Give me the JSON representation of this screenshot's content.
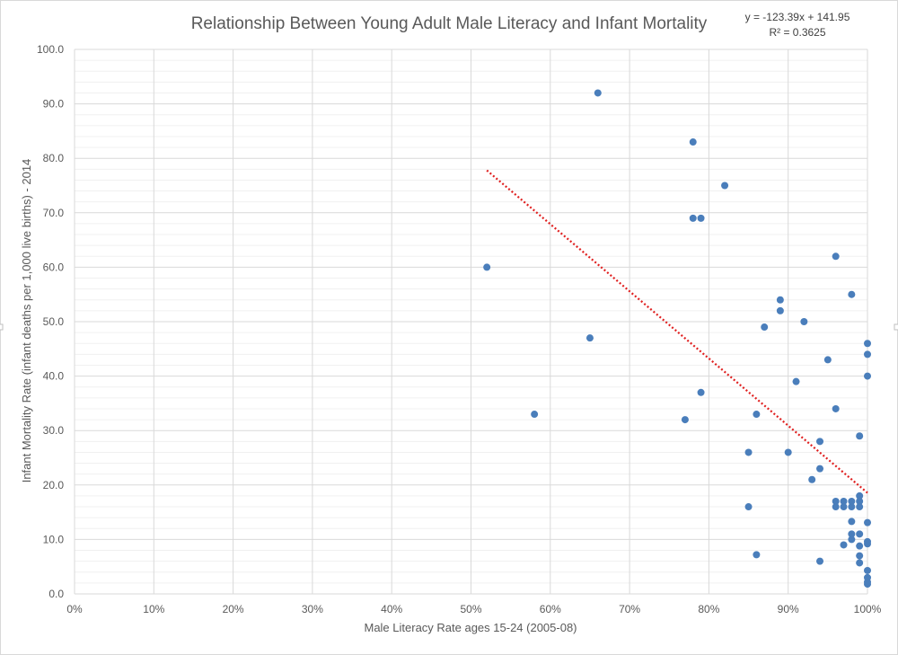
{
  "colors": {
    "marker": "#4a7ebb",
    "trendline": "#e02020",
    "gridline": "#d9d9d9",
    "minor_gridline": "#f0f0f0",
    "text": "#595959"
  },
  "chart_data": {
    "type": "scatter",
    "title": "Relationship Between Young Adult Male Literacy and Infant Mortality",
    "xlabel": "Male Literacy Rate ages 15-24 (2005-08)",
    "ylabel": "Infant Mortality Rate (infant deaths per 1,000 live births) - 2014",
    "xlim": [
      0,
      1
    ],
    "ylim": [
      0,
      100
    ],
    "x_ticks": [
      "0%",
      "10%",
      "20%",
      "30%",
      "40%",
      "50%",
      "60%",
      "70%",
      "80%",
      "90%",
      "100%"
    ],
    "y_ticks": [
      "0.0",
      "10.0",
      "20.0",
      "30.0",
      "40.0",
      "50.0",
      "60.0",
      "70.0",
      "80.0",
      "90.0",
      "100.0"
    ],
    "grid": true,
    "trendline": {
      "type": "linear",
      "slope": -123.39,
      "intercept": 141.95,
      "x_range": [
        0.52,
        1.0
      ],
      "equation": "y = -123.39x + 141.95",
      "r_squared_label": "R² = 0.3625"
    },
    "points": [
      {
        "x": 0.66,
        "y": 92
      },
      {
        "x": 0.78,
        "y": 83
      },
      {
        "x": 0.82,
        "y": 75
      },
      {
        "x": 0.78,
        "y": 69
      },
      {
        "x": 0.79,
        "y": 69
      },
      {
        "x": 0.96,
        "y": 62
      },
      {
        "x": 0.52,
        "y": 60
      },
      {
        "x": 0.98,
        "y": 55
      },
      {
        "x": 0.89,
        "y": 54
      },
      {
        "x": 0.89,
        "y": 52
      },
      {
        "x": 0.92,
        "y": 50
      },
      {
        "x": 0.87,
        "y": 49
      },
      {
        "x": 0.65,
        "y": 47
      },
      {
        "x": 1.0,
        "y": 46
      },
      {
        "x": 1.0,
        "y": 44
      },
      {
        "x": 0.95,
        "y": 43
      },
      {
        "x": 1.0,
        "y": 40
      },
      {
        "x": 0.91,
        "y": 39
      },
      {
        "x": 0.79,
        "y": 37
      },
      {
        "x": 0.96,
        "y": 34
      },
      {
        "x": 0.58,
        "y": 33
      },
      {
        "x": 0.86,
        "y": 33
      },
      {
        "x": 0.77,
        "y": 32
      },
      {
        "x": 0.99,
        "y": 29
      },
      {
        "x": 0.94,
        "y": 28
      },
      {
        "x": 0.85,
        "y": 26
      },
      {
        "x": 0.9,
        "y": 26
      },
      {
        "x": 0.94,
        "y": 23
      },
      {
        "x": 0.93,
        "y": 21
      },
      {
        "x": 0.99,
        "y": 18
      },
      {
        "x": 0.96,
        "y": 17
      },
      {
        "x": 0.97,
        "y": 17
      },
      {
        "x": 0.98,
        "y": 17
      },
      {
        "x": 0.99,
        "y": 17
      },
      {
        "x": 0.96,
        "y": 16
      },
      {
        "x": 0.97,
        "y": 16
      },
      {
        "x": 0.98,
        "y": 16
      },
      {
        "x": 0.99,
        "y": 16
      },
      {
        "x": 0.85,
        "y": 16
      },
      {
        "x": 0.98,
        "y": 13.3
      },
      {
        "x": 1.0,
        "y": 13.1
      },
      {
        "x": 0.98,
        "y": 11
      },
      {
        "x": 0.99,
        "y": 11
      },
      {
        "x": 0.98,
        "y": 10
      },
      {
        "x": 1.0,
        "y": 9.6
      },
      {
        "x": 1.0,
        "y": 9.2
      },
      {
        "x": 0.97,
        "y": 9
      },
      {
        "x": 0.99,
        "y": 8.8
      },
      {
        "x": 0.86,
        "y": 7.2
      },
      {
        "x": 0.99,
        "y": 7
      },
      {
        "x": 0.94,
        "y": 6
      },
      {
        "x": 0.99,
        "y": 5.7
      },
      {
        "x": 1.0,
        "y": 4.3
      },
      {
        "x": 1.0,
        "y": 3
      },
      {
        "x": 1.0,
        "y": 2.2
      },
      {
        "x": 1.0,
        "y": 1.8
      }
    ]
  }
}
